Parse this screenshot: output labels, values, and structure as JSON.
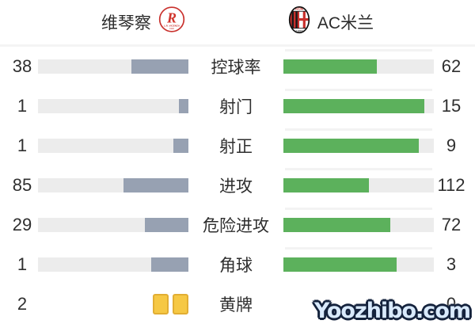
{
  "header": {
    "home_name": "维琴察",
    "away_name": "AC米兰",
    "home_logo_text": "L.R. VICENZA",
    "home_logo_year": "1902",
    "away_logo_acronym": "ACM",
    "away_logo_year": "1899"
  },
  "watermark": "Yoozhibo.com",
  "colors": {
    "home_bar": "#97a1b2",
    "away_bar": "#5cb15c",
    "bar_track": "#ececec",
    "yellow_card": "#f6c844"
  },
  "chart_data": {
    "type": "bar",
    "orientation": "horizontal-paired",
    "categories": [
      "控球率",
      "射门",
      "射正",
      "进攻",
      "危险进攻",
      "角球",
      "黄牌"
    ],
    "series": [
      {
        "name": "维琴察",
        "values": [
          38,
          1,
          1,
          85,
          29,
          1,
          2
        ]
      },
      {
        "name": "AC米兰",
        "values": [
          62,
          15,
          9,
          112,
          72,
          3,
          0
        ]
      }
    ],
    "note": "each bar fill fraction = value / (home value + away value); yellow cards shown as card icons instead of bars"
  },
  "stats": {
    "rows": [
      {
        "label": "控球率",
        "home": "38",
        "away": "62",
        "home_pct": 38,
        "away_pct": 62
      },
      {
        "label": "射门",
        "home": "1",
        "away": "15",
        "home_pct": 6.3,
        "away_pct": 93.7
      },
      {
        "label": "射正",
        "home": "1",
        "away": "9",
        "home_pct": 10,
        "away_pct": 90
      },
      {
        "label": "进攻",
        "home": "85",
        "away": "112",
        "home_pct": 43.1,
        "away_pct": 56.9
      },
      {
        "label": "危险进攻",
        "home": "29",
        "away": "72",
        "home_pct": 28.7,
        "away_pct": 71.3
      },
      {
        "label": "角球",
        "home": "1",
        "away": "3",
        "home_pct": 25,
        "away_pct": 75
      },
      {
        "label": "黄牌",
        "home": "2",
        "away": "0",
        "home_cards": 2,
        "away_cards": 0
      }
    ]
  }
}
